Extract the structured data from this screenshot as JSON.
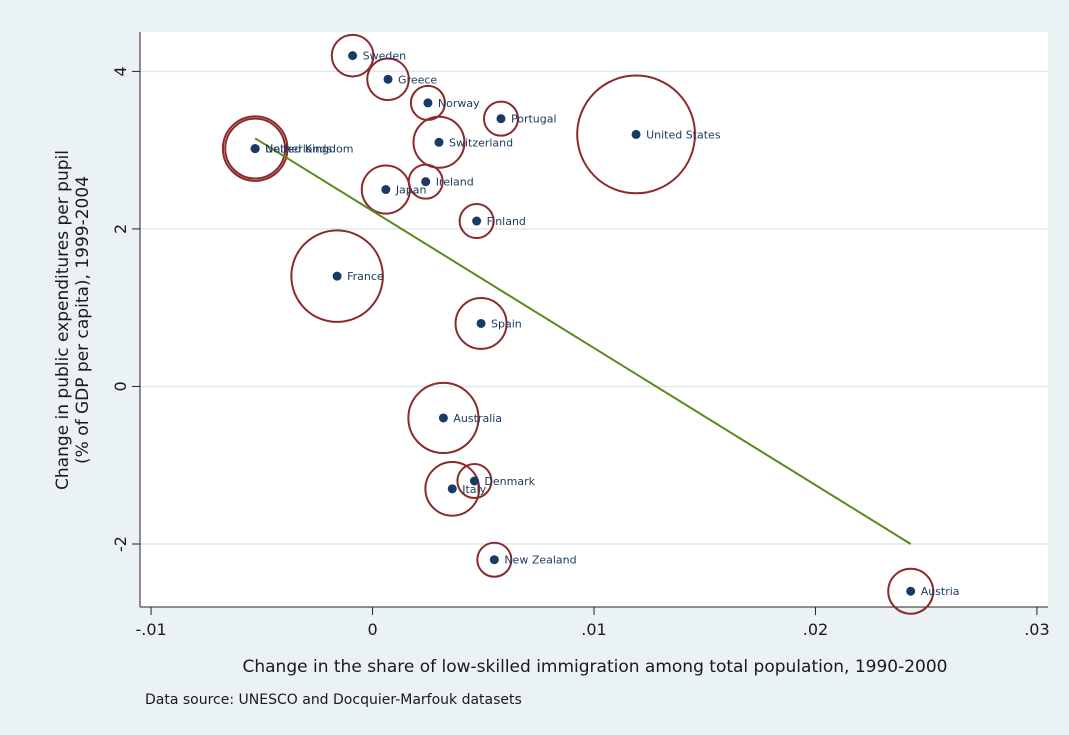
{
  "chart_data": {
    "type": "scatter",
    "title": "",
    "xlabel": "Change in the share of low-skilled immigration among total population, 1990-2000",
    "ylabel_line1": "Change in public expenditures per pupil",
    "ylabel_line2": "(% of GDP per capita), 1999-2004",
    "note": "Data source:  UNESCO and Docquier-Marfouk datasets",
    "xlim": [
      -0.0105,
      0.0305
    ],
    "ylim": [
      -2.8,
      4.5
    ],
    "xticks": [
      -0.01,
      0,
      0.01,
      0.02,
      0.03
    ],
    "xtick_labels": [
      "-.01",
      "0",
      ".01",
      ".02",
      ".03"
    ],
    "yticks": [
      -2,
      0,
      2,
      4
    ],
    "ytick_labels": [
      "-2",
      "0",
      "2",
      "4"
    ],
    "grid": true,
    "colors": {
      "marker": "#1a3a66",
      "bubble": "#8b2a2a",
      "fit_line": "#5a8a1e",
      "plot_background": "#ffffff",
      "grid": "#dfe9ec",
      "outer_background": "#eaf2f3"
    },
    "points": [
      {
        "label": "Sweden",
        "x": -0.0009,
        "y": 4.2,
        "size": 0.3
      },
      {
        "label": "Greece",
        "x": 0.0007,
        "y": 3.9,
        "size": 0.3
      },
      {
        "label": "Norway",
        "x": 0.0025,
        "y": 3.6,
        "size": 0.2
      },
      {
        "label": "Portugal",
        "x": 0.0058,
        "y": 3.4,
        "size": 0.2
      },
      {
        "label": "Switzerland",
        "x": 0.003,
        "y": 3.1,
        "size": 0.45
      },
      {
        "label": "United States",
        "x": 0.0119,
        "y": 3.2,
        "size": 2.4
      },
      {
        "label": "United Kingdom",
        "x": -0.0053,
        "y": 3.02,
        "size": 0.72
      },
      {
        "label": "Netherlands",
        "x": -0.0053,
        "y": 3.02,
        "size": 0.62
      },
      {
        "label": "Ireland",
        "x": 0.0024,
        "y": 2.6,
        "size": 0.2
      },
      {
        "label": "Japan",
        "x": 0.0006,
        "y": 2.5,
        "size": 0.4
      },
      {
        "label": "Finland",
        "x": 0.0047,
        "y": 2.1,
        "size": 0.2
      },
      {
        "label": "France",
        "x": -0.0016,
        "y": 1.4,
        "size": 1.45
      },
      {
        "label": "Spain",
        "x": 0.0049,
        "y": 0.8,
        "size": 0.45
      },
      {
        "label": "Australia",
        "x": 0.0032,
        "y": -0.4,
        "size": 0.85
      },
      {
        "label": "Denmark",
        "x": 0.0046,
        "y": -1.2,
        "size": 0.2
      },
      {
        "label": "Italy",
        "x": 0.0036,
        "y": -1.3,
        "size": 0.5
      },
      {
        "label": "New Zealand",
        "x": 0.0055,
        "y": -2.2,
        "size": 0.2
      },
      {
        "label": "Austria",
        "x": 0.0243,
        "y": -2.6,
        "size": 0.35
      }
    ],
    "fit_line": {
      "x": [
        -0.0053,
        0.0243
      ],
      "y": [
        3.15,
        -2.0
      ]
    }
  }
}
